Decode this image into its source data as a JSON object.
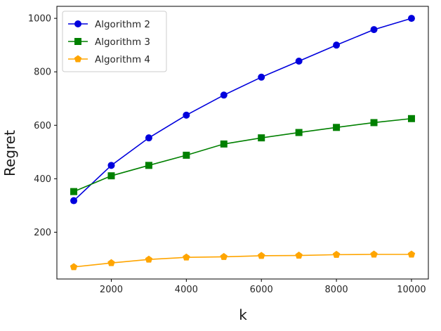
{
  "chart_data": {
    "type": "line",
    "title": "",
    "xlabel": "k",
    "ylabel": "Regret",
    "x": [
      1000,
      2000,
      3000,
      4000,
      5000,
      6000,
      7000,
      8000,
      9000,
      10000
    ],
    "xlim": [
      550,
      10450
    ],
    "ylim": [
      25,
      1045
    ],
    "xticks": [
      2000,
      4000,
      6000,
      8000,
      10000
    ],
    "yticks": [
      200,
      400,
      600,
      800,
      1000
    ],
    "grid": false,
    "legend_position": "top-left",
    "series": [
      {
        "name": "Algorithm 2",
        "color": "#0000dd",
        "marker": "circle",
        "values": [
          318,
          450,
          553,
          638,
          713,
          780,
          840,
          900,
          958,
          1000
        ]
      },
      {
        "name": "Algorithm 3",
        "color": "#008000",
        "marker": "square",
        "values": [
          352,
          411,
          450,
          488,
          530,
          553,
          573,
          592,
          610,
          625
        ]
      },
      {
        "name": "Algorithm 4",
        "color": "#ffa500",
        "marker": "pentagon",
        "values": [
          70,
          85,
          98,
          106,
          108,
          112,
          113,
          116,
          117,
          117
        ]
      }
    ]
  }
}
